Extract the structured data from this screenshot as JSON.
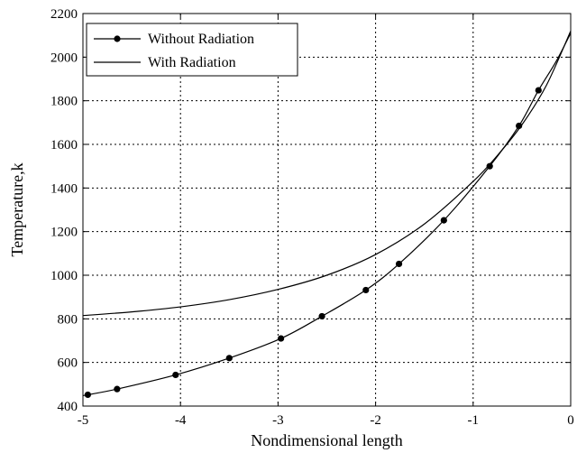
{
  "chart_data": {
    "type": "line",
    "xlabel": "Nondimensional length",
    "ylabel": "Temperature,k",
    "xlim": [
      -5,
      0
    ],
    "ylim": [
      400,
      2200
    ],
    "xticks": [
      -5,
      -4,
      -3,
      -2,
      -1,
      0
    ],
    "yticks": [
      400,
      600,
      800,
      1000,
      1200,
      1400,
      1600,
      1800,
      2000,
      2200
    ],
    "grid": true,
    "legend_position": "top-left",
    "series": [
      {
        "name": "Without Radiation",
        "marker": "circle",
        "line_color": "#000000",
        "points": [
          [
            -4.95,
            452
          ],
          [
            -4.65,
            478
          ],
          [
            -4.05,
            543
          ],
          [
            -3.5,
            620
          ],
          [
            -2.97,
            710
          ],
          [
            -2.55,
            812
          ],
          [
            -2.1,
            932
          ],
          [
            -1.76,
            1052
          ],
          [
            -1.3,
            1252
          ],
          [
            -0.83,
            1500
          ],
          [
            -0.53,
            1685
          ],
          [
            -0.33,
            1848
          ]
        ],
        "curve": [
          [
            -5,
            448
          ],
          [
            -4.95,
            452
          ],
          [
            -4.65,
            478
          ],
          [
            -4.05,
            543
          ],
          [
            -3.5,
            620
          ],
          [
            -2.97,
            710
          ],
          [
            -2.55,
            812
          ],
          [
            -2.1,
            932
          ],
          [
            -1.76,
            1052
          ],
          [
            -1.3,
            1252
          ],
          [
            -0.83,
            1500
          ],
          [
            -0.53,
            1685
          ],
          [
            -0.33,
            1848
          ],
          [
            -0.15,
            1980
          ],
          [
            0,
            2110
          ]
        ]
      },
      {
        "name": "With Radiation",
        "marker": "none",
        "line_color": "#000000",
        "curve": [
          [
            -5,
            815
          ],
          [
            -4.5,
            832
          ],
          [
            -4,
            855
          ],
          [
            -3.5,
            888
          ],
          [
            -3,
            935
          ],
          [
            -2.5,
            1000
          ],
          [
            -2,
            1095
          ],
          [
            -1.5,
            1235
          ],
          [
            -1,
            1430
          ],
          [
            -0.75,
            1550
          ],
          [
            -0.5,
            1690
          ],
          [
            -0.25,
            1870
          ],
          [
            0,
            2120
          ]
        ]
      }
    ]
  }
}
